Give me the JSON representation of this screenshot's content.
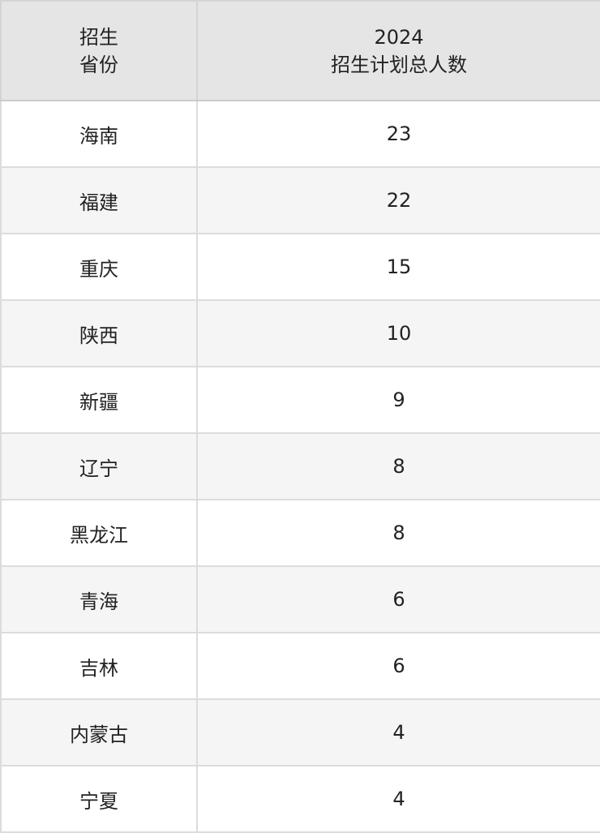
{
  "header": {
    "col1": [
      "招生",
      "省份"
    ],
    "col2": [
      "2024",
      "招生计划总人数"
    ]
  },
  "rows": [
    {
      "province": "海南",
      "count": "23"
    },
    {
      "province": "福建",
      "count": "22"
    },
    {
      "province": "重庆",
      "count": "15"
    },
    {
      "province": "陕西",
      "count": "10"
    },
    {
      "province": "新疆",
      "count": "9"
    },
    {
      "province": "辽宁",
      "count": "8"
    },
    {
      "province": "黑龙江",
      "count": "8"
    },
    {
      "province": "青海",
      "count": "6"
    },
    {
      "province": "吉林",
      "count": "6"
    },
    {
      "province": "内蒙古",
      "count": "4"
    },
    {
      "province": "宁夏",
      "count": "4"
    }
  ]
}
